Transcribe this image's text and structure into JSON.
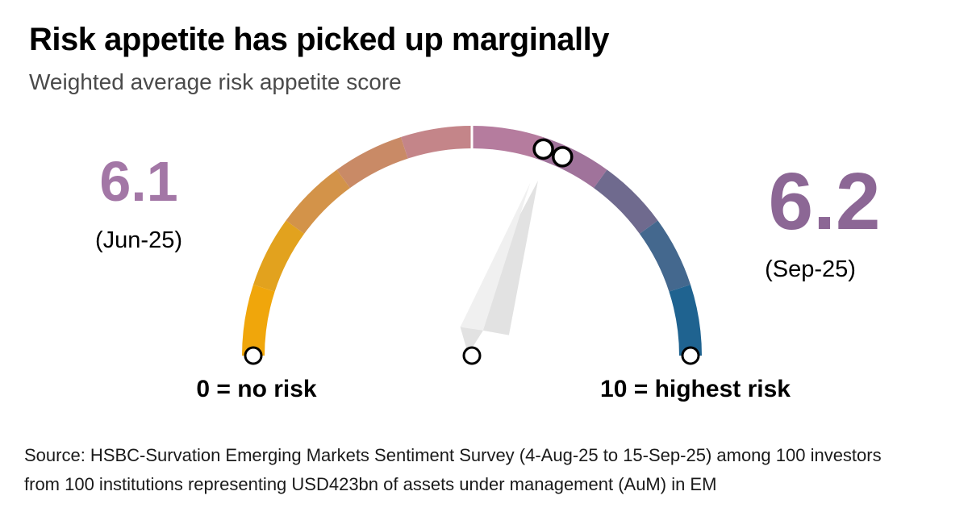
{
  "title": "Risk appetite has picked up marginally",
  "subtitle": "Weighted average risk appetite score",
  "source_line1": "Source: HSBC-Survation Emerging Markets Sentiment Survey (4-Aug-25 to 15-Sep-25) among 100 investors",
  "source_line2": "from 100 institutions representing USD423bn of assets under management (AuM) in EM",
  "chart_data": {
    "type": "gauge",
    "title": "Risk appetite has picked up marginally",
    "subtitle": "Weighted average risk appetite score",
    "scale": {
      "min": 0,
      "max": 10,
      "min_label": "0 = no risk",
      "max_label": "10 = highest risk"
    },
    "segments": [
      "#F0A60B",
      "#E2A21E",
      "#D39349",
      "#C98A66",
      "#C48589",
      "#B57C9E",
      "#A0739B",
      "#6F6A8E",
      "#44688E",
      "#1F6390"
    ],
    "readings": [
      {
        "label": "6.1",
        "value": 6.1,
        "period": "(Jun-25)",
        "color": "#A377A6"
      },
      {
        "label": "6.2",
        "value": 6.2,
        "period": "(Sep-25)",
        "color": "#8C6795"
      }
    ],
    "needle": {
      "points_at": 6.15,
      "color": "#E2E2E2",
      "highlight_color": "#F0F0F0"
    },
    "marker_style": {
      "fill": "#FFFFFF",
      "stroke": "#000000"
    },
    "top_divider_color": "#FFFFFF",
    "layout": {
      "legend": "none",
      "grid": false
    }
  }
}
